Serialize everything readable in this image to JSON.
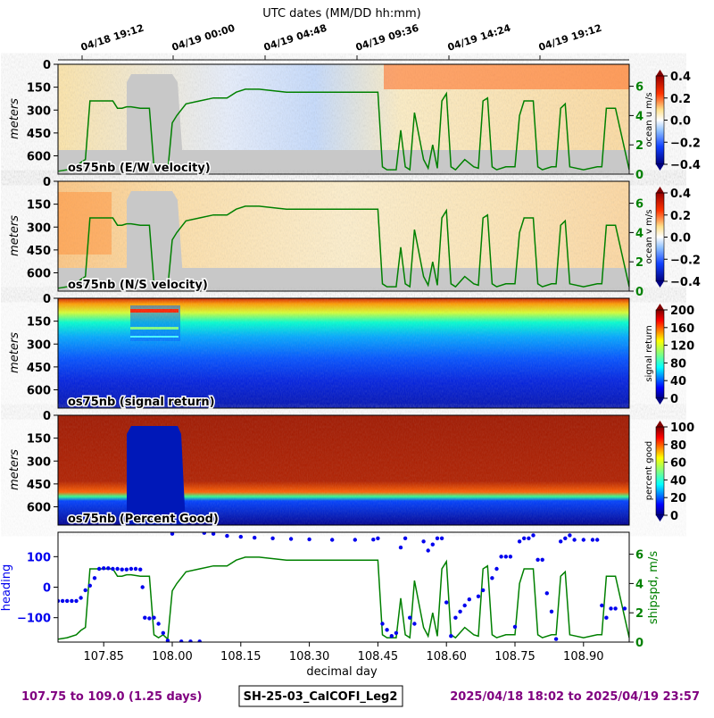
{
  "header": {
    "top_axis_title": "UTC dates (MM/DD hh:mm)"
  },
  "top_axis_ticks": [
    "04/18 19:12",
    "04/19 00:00",
    "04/19 04:48",
    "04/19 09:36",
    "04/19 14:24",
    "04/19 19:12"
  ],
  "footer": {
    "range": "107.75 to 109.0 (1.25 days)",
    "cruise": "SH-25-03_CalCOFI_Leg2",
    "dates": "2025/04/18 18:02 to 2025/04/19 23:57"
  },
  "colors": {
    "shipspd": "#008000",
    "heading": "#0000ee",
    "footer_text": "#800080",
    "nodata": "#c8c8c8"
  },
  "chart_data": [
    {
      "type": "heatmap",
      "panel_label": "os75nb (E/W velocity)",
      "ylabel": "meters",
      "yticks": [
        0,
        150,
        300,
        450,
        600
      ],
      "colorbar": {
        "label": "ocean u m/s",
        "cmap": "diverging",
        "range": [
          -0.4,
          0.4
        ],
        "ticks": [
          "0.4",
          "0.2",
          "0.0",
          "−0.2",
          "−0.4"
        ]
      },
      "right_axis": {
        "ticks": [
          "0",
          "2",
          "4",
          "6"
        ],
        "range": [
          0,
          7.5
        ]
      }
    },
    {
      "type": "heatmap",
      "panel_label": "os75nb (N/S velocity)",
      "ylabel": "meters",
      "yticks": [
        0,
        150,
        300,
        450,
        600
      ],
      "colorbar": {
        "label": "ocean v m/s",
        "cmap": "diverging",
        "range": [
          -0.4,
          0.4
        ],
        "ticks": [
          "0.4",
          "0.2",
          "0.0",
          "−0.2",
          "−0.4"
        ]
      },
      "right_axis": {
        "ticks": [
          "0",
          "2",
          "4",
          "6"
        ],
        "range": [
          0,
          7.5
        ]
      }
    },
    {
      "type": "heatmap",
      "panel_label": "os75nb (signal return)",
      "ylabel": "meters",
      "yticks": [
        0,
        150,
        300,
        450,
        600
      ],
      "colorbar": {
        "label": "signal return",
        "cmap": "jet",
        "range": [
          0,
          200
        ],
        "ticks": [
          "200",
          "160",
          "120",
          "80",
          "40",
          "0"
        ]
      }
    },
    {
      "type": "heatmap",
      "panel_label": "os75nb (Percent Good)",
      "ylabel": "meters",
      "yticks": [
        0,
        150,
        300,
        450,
        600
      ],
      "colorbar": {
        "label": "percent good",
        "cmap": "jet",
        "range": [
          0,
          100
        ],
        "ticks": [
          "100",
          "80",
          "60",
          "40",
          "20",
          "0"
        ]
      }
    },
    {
      "type": "line",
      "xlabel": "decimal day",
      "xticks": [
        "107.85",
        "108.00",
        "108.15",
        "108.30",
        "108.45",
        "108.60",
        "108.75",
        "108.90"
      ],
      "x_range": [
        107.75,
        109.0
      ],
      "left_axis": {
        "label": "heading",
        "ticks": [
          "100",
          "0",
          "−100"
        ],
        "range": [
          -180,
          180
        ]
      },
      "right_axis": {
        "label": "shipspd, m/s",
        "ticks": [
          "6",
          "4",
          "2",
          "0"
        ],
        "range": [
          0,
          7.5
        ]
      },
      "series": [
        {
          "name": "shipspd, m/s",
          "x": [
            107.75,
            107.77,
            107.79,
            107.8,
            107.81,
            107.82,
            107.84,
            107.87,
            107.88,
            107.89,
            107.9,
            107.91,
            107.93,
            107.95,
            107.96,
            107.97,
            107.98,
            107.99,
            108.0,
            108.01,
            108.03,
            108.06,
            108.09,
            108.12,
            108.14,
            108.16,
            108.19,
            108.25,
            108.3,
            108.36,
            108.42,
            108.45,
            108.46,
            108.47,
            108.49,
            108.5,
            108.51,
            108.52,
            108.53,
            108.55,
            108.56,
            108.57,
            108.58,
            108.59,
            108.6,
            108.61,
            108.62,
            108.64,
            108.66,
            108.67,
            108.68,
            108.69,
            108.7,
            108.71,
            108.73,
            108.75,
            108.76,
            108.77,
            108.79,
            108.8,
            108.81,
            108.83,
            108.84,
            108.85,
            108.86,
            108.87,
            108.9,
            108.93,
            108.94,
            108.95,
            108.97,
            109.0
          ],
          "y": [
            0.2,
            0.3,
            0.5,
            0.8,
            1.0,
            5.0,
            5.0,
            5.0,
            4.5,
            4.5,
            4.6,
            4.6,
            4.5,
            4.5,
            0.5,
            0.3,
            0.5,
            0.2,
            3.5,
            4.0,
            4.8,
            5.0,
            5.2,
            5.2,
            5.6,
            5.8,
            5.8,
            5.6,
            5.6,
            5.6,
            5.6,
            5.6,
            0.5,
            0.3,
            0.3,
            3.0,
            0.5,
            0.3,
            4.2,
            1.0,
            0.4,
            2.0,
            0.4,
            5.0,
            5.5,
            0.5,
            0.3,
            1.0,
            0.5,
            0.4,
            5.0,
            5.2,
            0.5,
            0.3,
            0.5,
            0.5,
            4.0,
            5.0,
            5.0,
            0.5,
            0.3,
            0.5,
            0.5,
            4.5,
            4.8,
            0.5,
            0.3,
            0.5,
            0.5,
            4.5,
            4.5,
            0.3
          ]
        },
        {
          "name": "heading",
          "points": [
            [
              107.75,
              -45
            ],
            [
              107.76,
              -45
            ],
            [
              107.77,
              -45
            ],
            [
              107.78,
              -45
            ],
            [
              107.79,
              -45
            ],
            [
              107.8,
              -35
            ],
            [
              107.81,
              -10
            ],
            [
              107.82,
              5
            ],
            [
              107.83,
              30
            ],
            [
              107.84,
              60
            ],
            [
              107.85,
              62
            ],
            [
              107.86,
              62
            ],
            [
              107.87,
              60
            ],
            [
              107.88,
              60
            ],
            [
              107.89,
              58
            ],
            [
              107.9,
              58
            ],
            [
              107.91,
              60
            ],
            [
              107.92,
              60
            ],
            [
              107.93,
              58
            ],
            [
              107.935,
              0
            ],
            [
              107.94,
              -100
            ],
            [
              107.95,
              -102
            ],
            [
              107.96,
              -100
            ],
            [
              107.97,
              -120
            ],
            [
              107.98,
              -150
            ],
            [
              107.99,
              -175
            ],
            [
              108.0,
              175
            ],
            [
              108.02,
              -178
            ],
            [
              108.04,
              -178
            ],
            [
              108.06,
              -178
            ],
            [
              108.07,
              178
            ],
            [
              108.09,
              175
            ],
            [
              108.12,
              168
            ],
            [
              108.15,
              165
            ],
            [
              108.18,
              162
            ],
            [
              108.22,
              160
            ],
            [
              108.26,
              158
            ],
            [
              108.3,
              157
            ],
            [
              108.35,
              155
            ],
            [
              108.4,
              155
            ],
            [
              108.44,
              156
            ],
            [
              108.45,
              160
            ],
            [
              108.46,
              -120
            ],
            [
              108.47,
              -140
            ],
            [
              108.48,
              -160
            ],
            [
              108.49,
              -150
            ],
            [
              108.5,
              130
            ],
            [
              108.51,
              160
            ],
            [
              108.52,
              -100
            ],
            [
              108.53,
              -120
            ],
            [
              108.55,
              150
            ],
            [
              108.56,
              120
            ],
            [
              108.57,
              140
            ],
            [
              108.58,
              160
            ],
            [
              108.59,
              160
            ],
            [
              108.6,
              -50
            ],
            [
              108.61,
              -160
            ],
            [
              108.62,
              -100
            ],
            [
              108.63,
              -80
            ],
            [
              108.64,
              -60
            ],
            [
              108.65,
              -40
            ],
            [
              108.67,
              -30
            ],
            [
              108.68,
              -10
            ],
            [
              108.7,
              30
            ],
            [
              108.71,
              60
            ],
            [
              108.72,
              100
            ],
            [
              108.73,
              100
            ],
            [
              108.74,
              100
            ],
            [
              108.75,
              -130
            ],
            [
              108.76,
              150
            ],
            [
              108.77,
              160
            ],
            [
              108.78,
              160
            ],
            [
              108.79,
              170
            ],
            [
              108.8,
              90
            ],
            [
              108.81,
              90
            ],
            [
              108.82,
              -20
            ],
            [
              108.83,
              -80
            ],
            [
              108.84,
              -170
            ],
            [
              108.85,
              150
            ],
            [
              108.86,
              160
            ],
            [
              108.87,
              170
            ],
            [
              108.88,
              155
            ],
            [
              108.9,
              155
            ],
            [
              108.92,
              155
            ],
            [
              108.93,
              155
            ],
            [
              108.94,
              -60
            ],
            [
              108.95,
              -100
            ],
            [
              108.96,
              -70
            ],
            [
              108.97,
              -70
            ],
            [
              108.99,
              -70
            ]
          ]
        }
      ]
    }
  ]
}
